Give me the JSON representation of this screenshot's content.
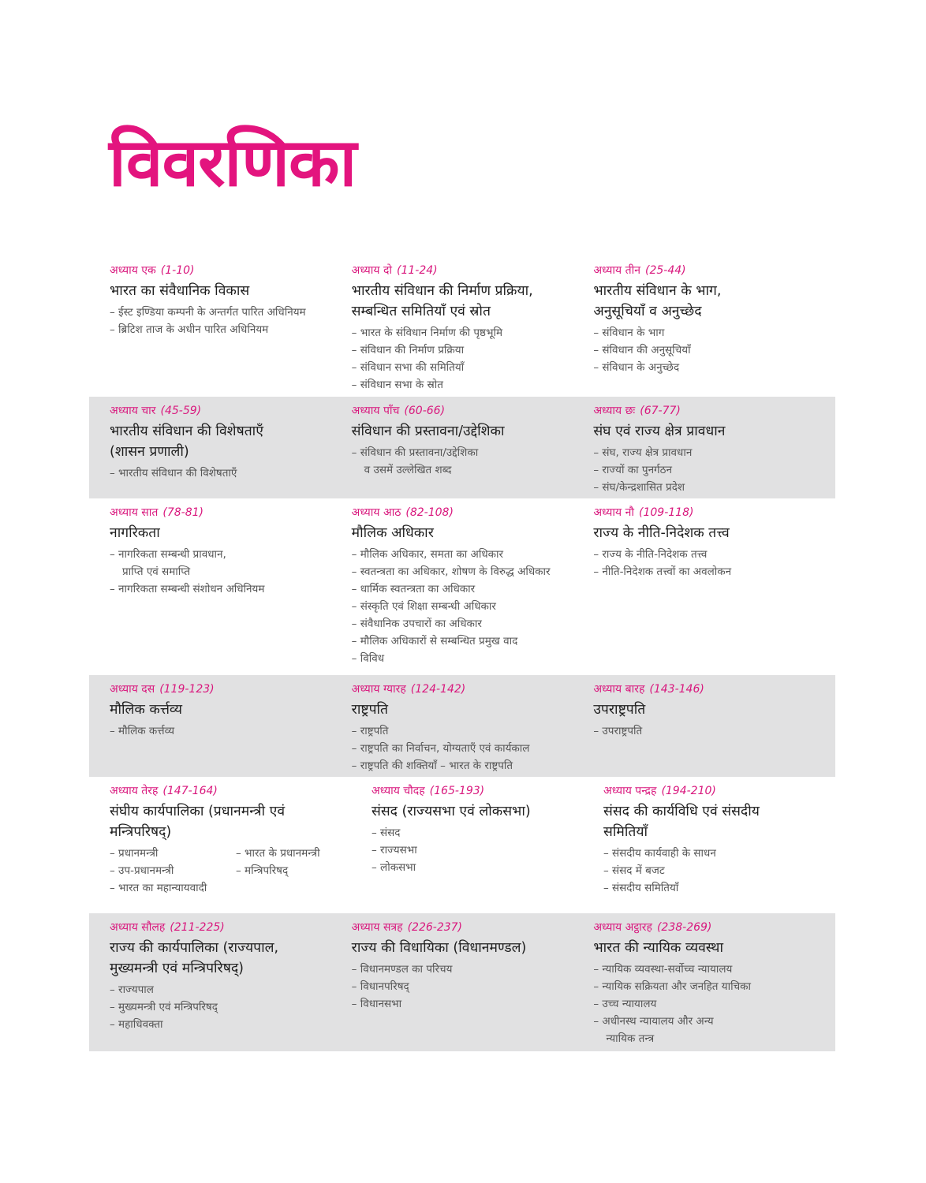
{
  "page_title": "विवरणिका",
  "colors": {
    "accent": "#e3147e",
    "band": "#e1e1e2"
  },
  "rows": [
    {
      "shaded": false,
      "chapters": [
        {
          "label": "अध्याय एक",
          "range": "(1-10)",
          "title": "भारत का संवैधानिक विकास",
          "items": [
            "– ईस्ट इण्डिया कम्पनी के अन्तर्गत पारित अधिनियम",
            "– ब्रिटिश ताज के अधीन पारित अधिनियम"
          ]
        },
        {
          "label": "अध्याय दो",
          "range": "(11-24)",
          "title": "भारतीय संविधान की निर्माण प्रक्रिया,\nसम्बन्धित समितियाँ एवं स्रोत",
          "items": [
            "– भारत के संविधान निर्माण की पृष्ठभूमि",
            "– संविधान की निर्माण प्रक्रिया",
            "– संविधान सभा की समितियाँ",
            "– संविधान सभा के स्रोत"
          ]
        },
        {
          "label": "अध्याय तीन",
          "range": "(25-44)",
          "title": "भारतीय संविधान के भाग,\nअनुसूचियाँ व अनुच्छेद",
          "items": [
            "– संविधान के भाग",
            "– संविधान की अनुसूचियाँ",
            "– संविधान के अनुच्छेद"
          ]
        }
      ]
    },
    {
      "shaded": true,
      "chapters": [
        {
          "label": "अध्याय चार",
          "range": "(45-59)",
          "title": "भारतीय संविधान की विशेषताएँ\n(शासन प्रणाली)",
          "items": [
            "– भारतीय संविधान की विशेषताएँ"
          ]
        },
        {
          "label": "अध्याय पाँच",
          "range": "(60-66)",
          "title": "संविधान की प्रस्तावना/उद्देशिका",
          "items": [
            "– संविधान की प्रस्तावना/उद्देशिका\nव उसमें उल्लेखित शब्द"
          ]
        },
        {
          "label": "अध्याय छः",
          "range": "(67-77)",
          "title": "संघ एवं राज्य क्षेत्र प्रावधान",
          "items": [
            "– संघ, राज्य क्षेत्र प्रावधान",
            "– राज्यों का पुनर्गठन",
            "– संघ/केन्द्रशासित प्रदेश"
          ]
        }
      ]
    },
    {
      "shaded": false,
      "chapters": [
        {
          "label": "अध्याय सात",
          "range": "(78-81)",
          "title": "नागरिकता",
          "items": [
            "– नागरिकता सम्बन्धी प्रावधान,\nप्राप्ति एवं समाप्ति",
            "– नागरिकता सम्बन्धी संशोधन अधिनियम"
          ]
        },
        {
          "label": "अध्याय आठ",
          "range": "(82-108)",
          "title": "मौलिक अधिकार",
          "items": [
            "– मौलिक अधिकार, समता का अधिकार",
            "– स्वतन्त्रता का अधिकार, शोषण के विरुद्ध अधिकार",
            "– धार्मिक स्वतन्त्रता का अधिकार",
            "– संस्कृति एवं शिक्षा सम्बन्धी अधिकार",
            "– संवैधानिक उपचारों का अधिकार",
            "– मौलिक अधिकारों से सम्बन्धित प्रमुख वाद",
            "– विविध"
          ]
        },
        {
          "label": "अध्याय नौ",
          "range": "(109-118)",
          "title": "राज्य के नीति-निदेशक तत्त्व",
          "items": [
            "– राज्य के नीति-निदेशक तत्त्व",
            "– नीति-निदेशक तत्त्वों का अवलोकन"
          ]
        }
      ]
    },
    {
      "shaded": true,
      "chapters": [
        {
          "label": "अध्याय दस",
          "range": "(119-123)",
          "title": "मौलिक कर्त्तव्य",
          "items": [
            "– मौलिक कर्त्तव्य"
          ]
        },
        {
          "label": "अध्याय ग्यारह",
          "range": "(124-142)",
          "title": "राष्ट्रपति",
          "items": [
            "– राष्ट्रपति",
            "– राष्ट्रपति का निर्वाचन, योग्यताएँ एवं कार्यकाल",
            "– राष्ट्रपति की शक्तियाँ – भारत के राष्ट्रपति"
          ]
        },
        {
          "label": "अध्याय बारह",
          "range": "(143-146)",
          "title": "उपराष्ट्रपति",
          "items": [
            "– उपराष्ट्रपति"
          ]
        }
      ]
    },
    {
      "shaded": false,
      "chapters": [
        {
          "label": "अध्याय तेरह",
          "range": "(147-164)",
          "title": "संघीय कार्यपालिका (प्रधानमन्त्री एवं\nमन्त्रिपरिषद्)",
          "two_column_items": true,
          "items": [
            "– प्रधानमन्त्री",
            "– भारत के प्रधानमन्त्री",
            "– उप-प्रधानमन्त्री",
            "– मन्त्रिपरिषद्",
            "– भारत का महान्यायवादी"
          ]
        },
        {
          "label": "अध्याय चौदह",
          "range": "(165-193)",
          "title": "संसद (राज्यसभा एवं लोकसभा)",
          "items": [
            "– संसद",
            "– राज्यसभा",
            "– लोकसभा"
          ]
        },
        {
          "label": "अध्याय पन्द्रह",
          "range": "(194-210)",
          "title": "संसद की कार्यविधि एवं संसदीय\nसमितियाँ",
          "items": [
            "– संसदीय कार्यवाही के साधन",
            "– संसद में बजट",
            "– संसदीय समितियाँ"
          ]
        }
      ]
    },
    {
      "shaded": true,
      "chapters": [
        {
          "label": "अध्याय सौलह",
          "range": "(211-225)",
          "title": "राज्य की कार्यपालिका (राज्यपाल,\nमुख्यमन्त्री एवं मन्त्रिपरिषद्)",
          "items": [
            "– राज्यपाल",
            "– मुख्यमन्त्री एवं मन्त्रिपरिषद्",
            "– महाधिवक्ता"
          ]
        },
        {
          "label": "अध्याय सत्रह",
          "range": "(226-237)",
          "title": "राज्य की विधायिका (विधानमण्डल)",
          "items": [
            "– विधानमण्डल का परिचय",
            "– विधानपरिषद्",
            "– विधानसभा"
          ]
        },
        {
          "label": "अध्याय अट्ठारह",
          "range": "(238-269)",
          "title": "भारत की न्यायिक व्यवस्था",
          "items": [
            "– न्यायिक व्यवस्था-सर्वोच्च न्यायालय",
            "– न्यायिक सक्रियता और जनहित याचिका",
            "– उच्च न्यायालय",
            "– अधीनस्थ न्यायालय और अन्य\nन्यायिक तन्त्र"
          ]
        }
      ]
    }
  ]
}
